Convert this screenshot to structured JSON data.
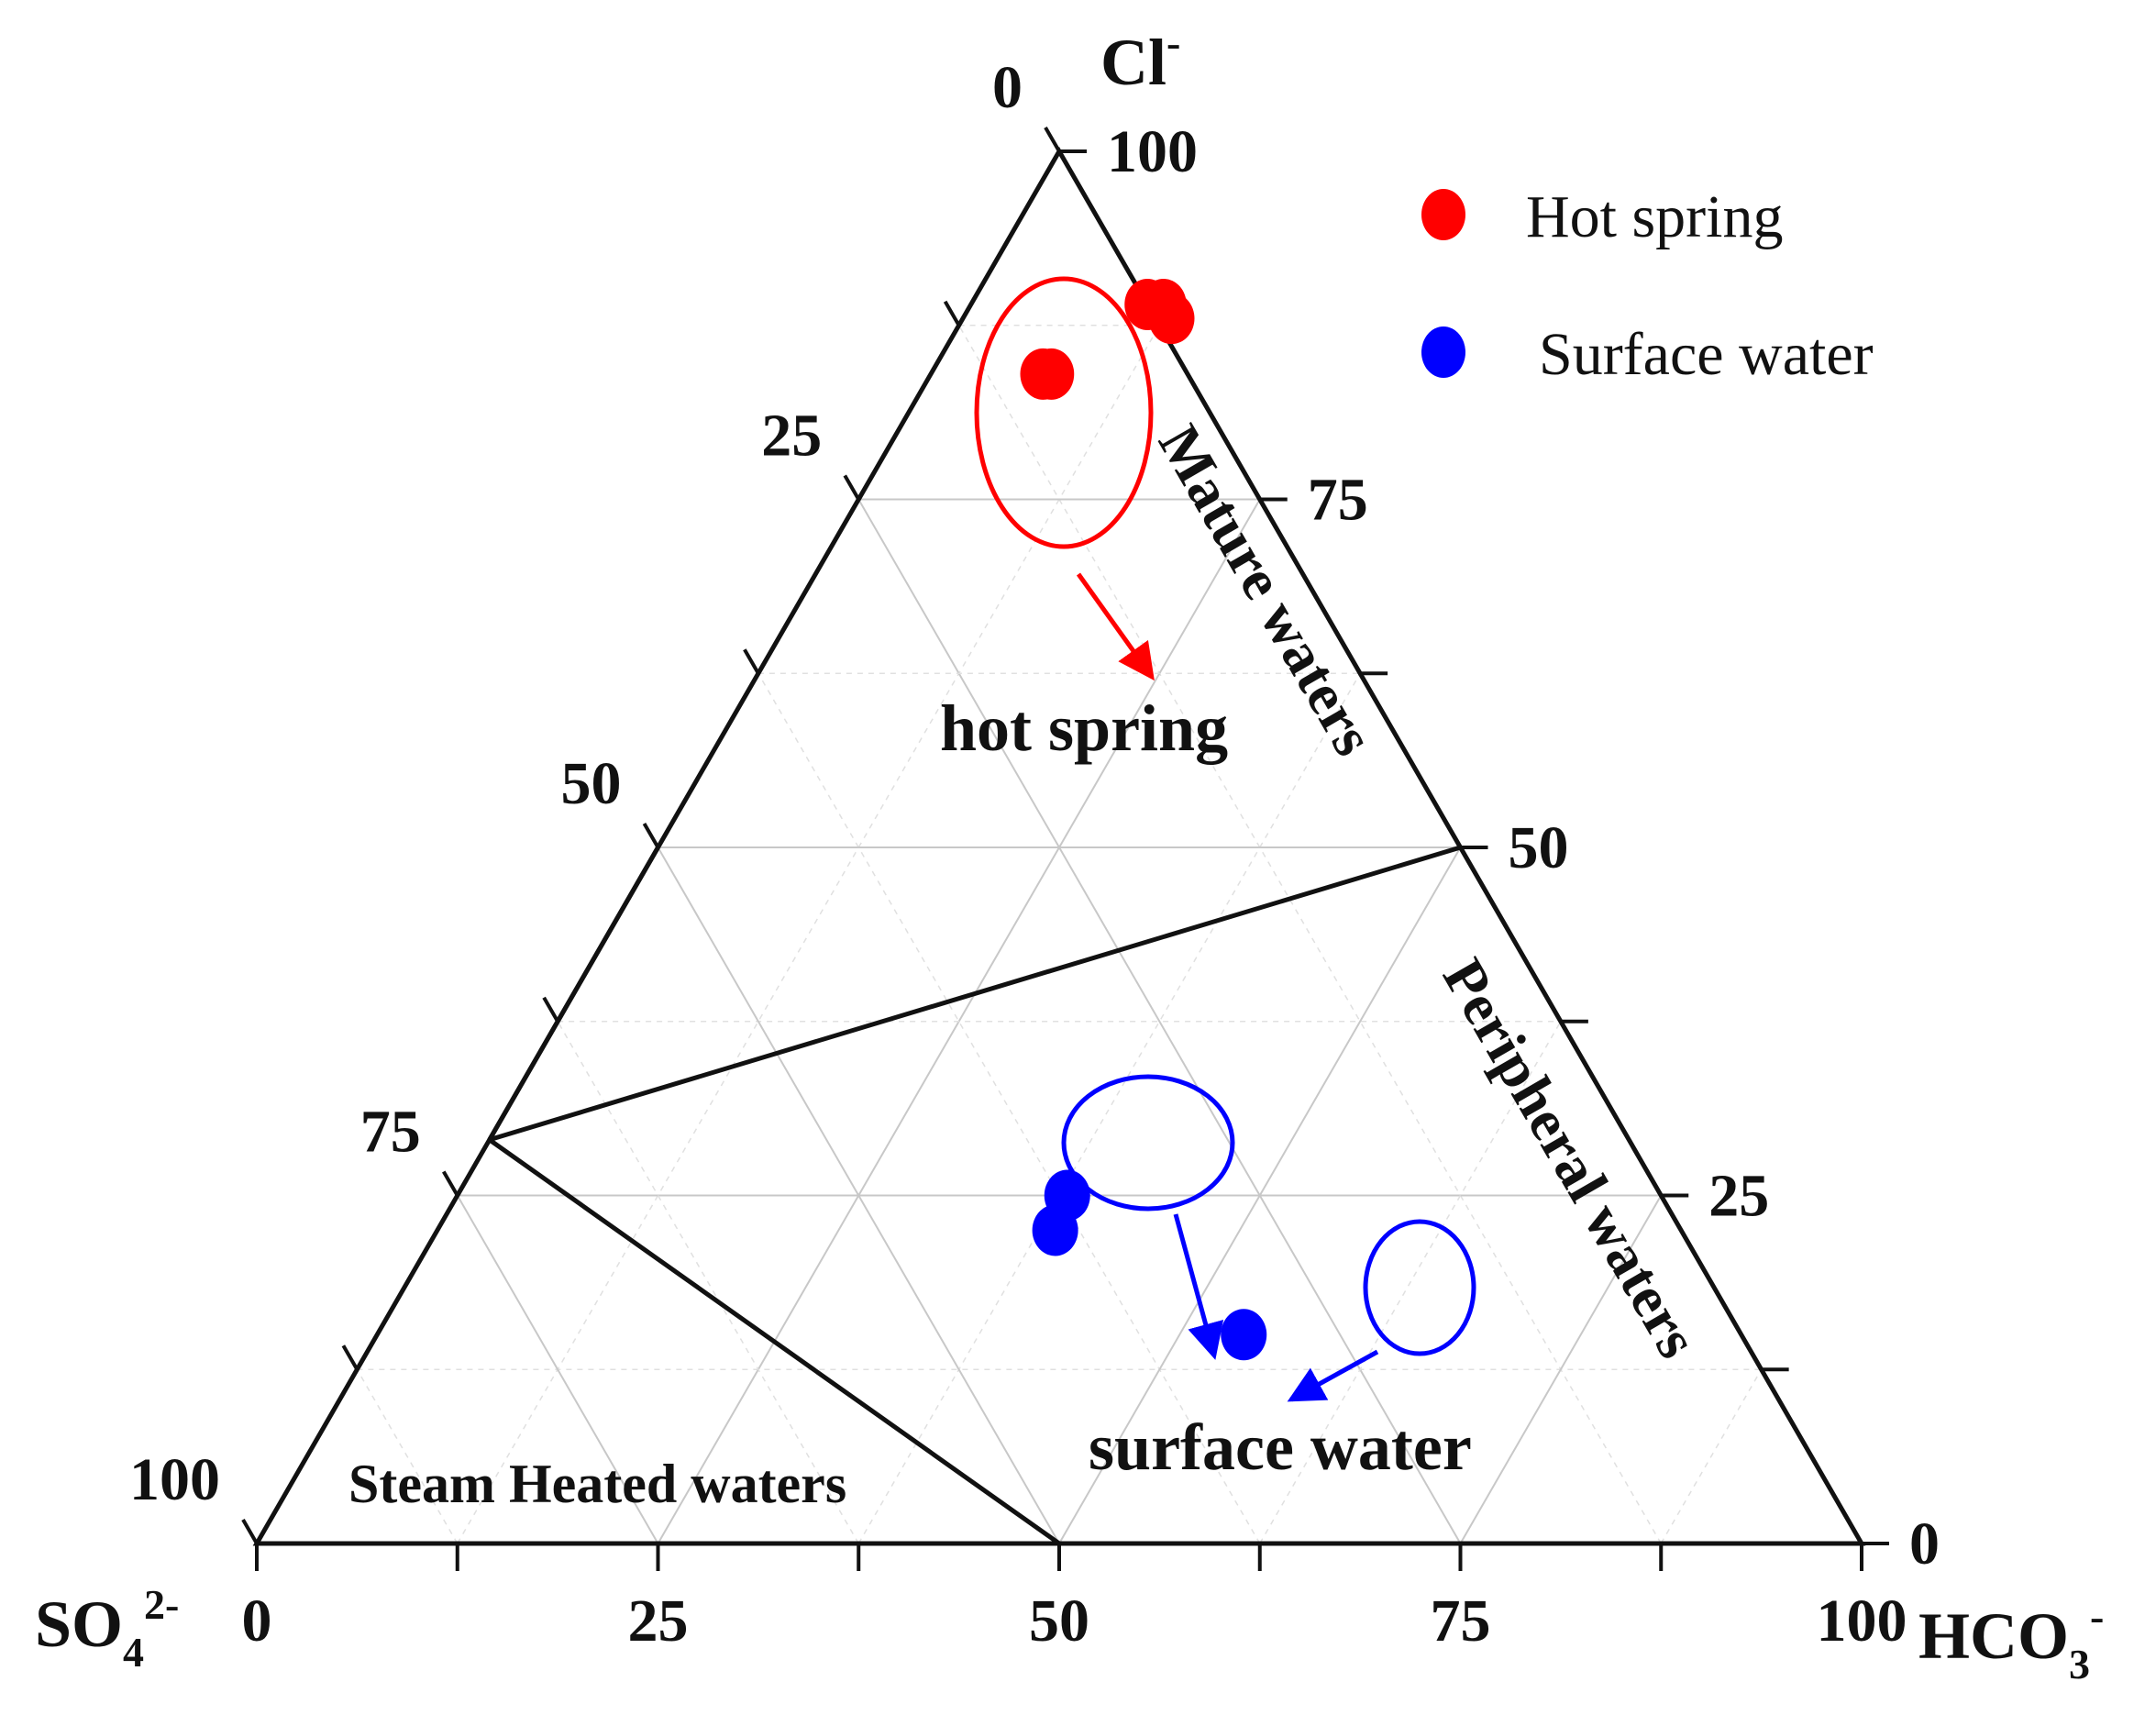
{
  "chart_data": {
    "type": "ternary-scatter",
    "axes": {
      "top": {
        "label": "Cl",
        "superscript": "-",
        "subscript": ""
      },
      "left": {
        "label": "SO",
        "subscript": "4",
        "superscript": "2-"
      },
      "right": {
        "label": "HCO",
        "subscript": "3",
        "superscript": "-"
      }
    },
    "tick_values": [
      0,
      25,
      50,
      75,
      100
    ],
    "grid_step": 12.5,
    "grid": true,
    "regions": [
      {
        "name": "Mature waters",
        "text": "Mature waters"
      },
      {
        "name": "Peripheral waters",
        "text": "Peripheral waters"
      },
      {
        "name": "Steam Heated waters",
        "text": "Steam Heated waters"
      }
    ],
    "boundary_lines": [
      {
        "from": {
          "cl": 50,
          "hco3": 0,
          "so4": 50
        },
        "to": {
          "cl": 29,
          "hco3": 0,
          "so4": 0
        }
      },
      {
        "from": {
          "cl": 50,
          "hco3": 50,
          "so4": 0
        },
        "to": {
          "cl": 29,
          "hco3": 0,
          "so4": 0
        }
      },
      {
        "from": {
          "cl": 29,
          "hco3": 0,
          "so4": 0
        },
        "to": {
          "cl": 0,
          "hco3": 50,
          "so4": 50
        }
      }
    ],
    "annotations": [
      {
        "text": "hot spring",
        "color": "#111111"
      },
      {
        "text": "surface water",
        "color": "#111111"
      }
    ],
    "legend": {
      "position": "top-right"
    },
    "series": [
      {
        "name": "Hot spring",
        "color": "#ff0000",
        "points": [
          {
            "cl": 89,
            "hco3": 11
          },
          {
            "cl": 89,
            "hco3": 12
          },
          {
            "cl": 88,
            "hco3": 13
          },
          {
            "cl": 84,
            "hco3": 7
          },
          {
            "cl": 84,
            "hco3": 7.5
          }
        ]
      },
      {
        "name": "Surface water",
        "color": "#0000ff",
        "points": [
          {
            "cl": 25,
            "hco3": 38
          },
          {
            "cl": 22.5,
            "hco3": 38.5
          },
          {
            "cl": 15,
            "hco3": 54
          }
        ]
      }
    ]
  }
}
